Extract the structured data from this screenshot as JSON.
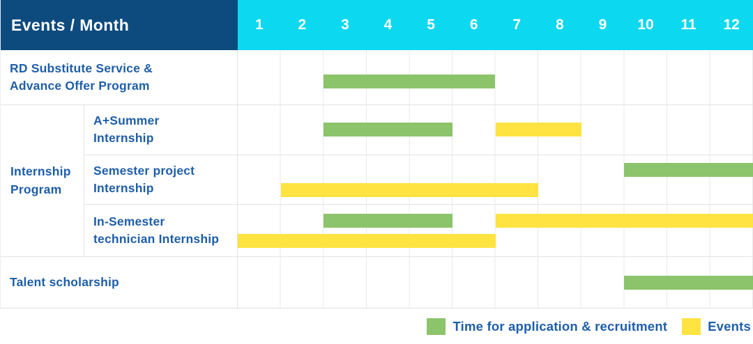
{
  "header": {
    "title": "Events / Month"
  },
  "colors": {
    "header_bg": "#0d4a7e",
    "month_header_bg": "#0cd8ef",
    "green_bar": "#8bc46b",
    "yellow_bar": "#ffe341",
    "label_text": "#1e5ea9",
    "grid_line": "#e9e9e9"
  },
  "chart_data": {
    "type": "gantt",
    "title": "Events / Month",
    "x_axis_label": "Month",
    "months": [
      "1",
      "2",
      "3",
      "4",
      "5",
      "6",
      "7",
      "8",
      "9",
      "10",
      "11",
      "12"
    ],
    "x_range": [
      1,
      12
    ],
    "grid": true,
    "legend_position": "bottom-right",
    "group_label": "Internship\nProgram",
    "rows": [
      {
        "label": "RD Substitute Service &\nAdvance Offer Program",
        "group": null,
        "bars": [
          {
            "kind": "application_recruitment",
            "color": "green",
            "start_month": 3,
            "end_month": 6,
            "lane": "center"
          }
        ]
      },
      {
        "label": "A+Summer\nInternship",
        "group": "Internship Program",
        "bars": [
          {
            "kind": "application_recruitment",
            "color": "green",
            "start_month": 3,
            "end_month": 5,
            "lane": "center"
          },
          {
            "kind": "events",
            "color": "yellow",
            "start_month": 7,
            "end_month": 8,
            "lane": "center"
          }
        ]
      },
      {
        "label": "Semester project\nInternship",
        "group": "Internship Program",
        "bars": [
          {
            "kind": "application_recruitment",
            "color": "green",
            "start_month": 10,
            "end_month": 12,
            "lane": "upper"
          },
          {
            "kind": "events",
            "color": "yellow",
            "start_month": 2,
            "end_month": 7,
            "lane": "lower"
          }
        ]
      },
      {
        "label": "In-Semester\ntechnician Internship",
        "group": "Internship Program",
        "bars": [
          {
            "kind": "application_recruitment",
            "color": "green",
            "start_month": 3,
            "end_month": 5,
            "lane": "upper"
          },
          {
            "kind": "events",
            "color": "yellow",
            "start_month": 7,
            "end_month": 12,
            "lane": "upper"
          },
          {
            "kind": "events",
            "color": "yellow",
            "start_month": 1,
            "end_month": 6,
            "lane": "lower"
          }
        ]
      },
      {
        "label": "Talent scholarship",
        "group": null,
        "bars": [
          {
            "kind": "application_recruitment",
            "color": "green",
            "start_month": 10,
            "end_month": 12,
            "lane": "center"
          }
        ]
      }
    ],
    "legend": [
      {
        "label": "Time for application & recruitment",
        "color": "#8bc46b"
      },
      {
        "label": "Events",
        "color": "#ffe341"
      }
    ]
  }
}
